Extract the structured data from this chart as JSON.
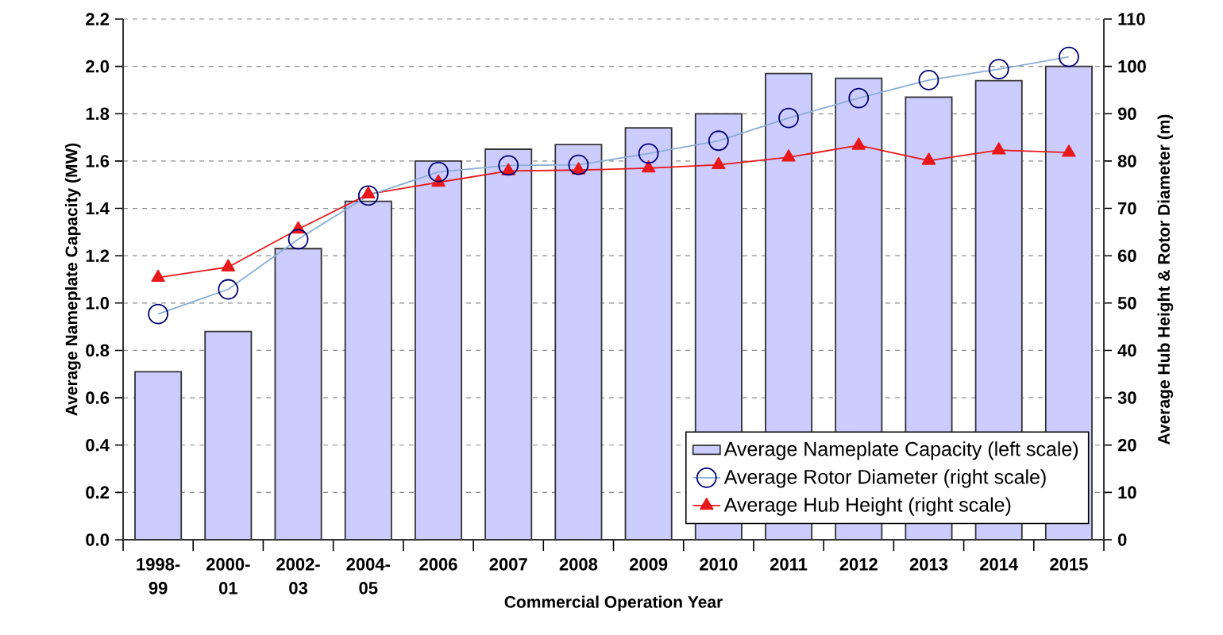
{
  "chart_data": {
    "type": "bar",
    "xlabel": "Commercial Operation Year",
    "ylabel": "Average Nameplate Capacity (MW)",
    "y2label": "Average Hub Height & Rotor Diameter (m)",
    "categories": [
      "1998-99",
      "2000-01",
      "2002-03",
      "2004-05",
      "2006",
      "2007",
      "2008",
      "2009",
      "2010",
      "2011",
      "2012",
      "2013",
      "2014",
      "2015"
    ],
    "series": [
      {
        "name": "Average Nameplate Capacity (left scale)",
        "color": "#ccccff",
        "values": [
          0.71,
          0.88,
          1.23,
          1.43,
          1.6,
          1.65,
          1.67,
          1.74,
          1.8,
          1.97,
          1.95,
          1.87,
          1.94,
          2.0
        ]
      },
      {
        "name": "Average Rotor Diameter (right scale)",
        "type": "line",
        "axis": "y2",
        "marker": "circle",
        "color": "#8aaed6",
        "values": [
          47.7,
          52.9,
          63.5,
          72.7,
          77.7,
          79.1,
          79.2,
          81.6,
          84.3,
          89.1,
          93.3,
          97.1,
          99.4,
          102.0
        ]
      },
      {
        "name": "Average Hub Height (right scale)",
        "type": "line",
        "axis": "y2",
        "marker": "triangle",
        "color": "#e8191b",
        "values": [
          55.4,
          57.6,
          65.6,
          73.0,
          75.5,
          77.9,
          78.1,
          78.5,
          79.2,
          80.8,
          83.3,
          80.1,
          82.3,
          81.8
        ]
      }
    ],
    "ylim": [
      0,
      2.2
    ],
    "yticks": [
      {
        "value": 0,
        "label": "0.0"
      },
      {
        "value": 0.2,
        "label": "0.2"
      },
      {
        "value": 0.4,
        "label": "0.4"
      },
      {
        "value": 0.6,
        "label": "0.6"
      },
      {
        "value": 0.8,
        "label": "0.8"
      },
      {
        "value": 1.0,
        "label": "1.0"
      },
      {
        "value": 1.2,
        "label": "1.2"
      },
      {
        "value": 1.4,
        "label": "1.4"
      },
      {
        "value": 1.6,
        "label": "1.6"
      },
      {
        "value": 1.8,
        "label": "1.8"
      },
      {
        "value": 2.0,
        "label": "2.0"
      },
      {
        "value": 2.2,
        "label": "2.2"
      }
    ],
    "y2lim": [
      0,
      110
    ],
    "y2ticks": [
      0,
      10,
      20,
      30,
      40,
      50,
      60,
      70,
      80,
      90,
      100,
      110
    ],
    "grid": "y",
    "legend": "bottom right"
  }
}
